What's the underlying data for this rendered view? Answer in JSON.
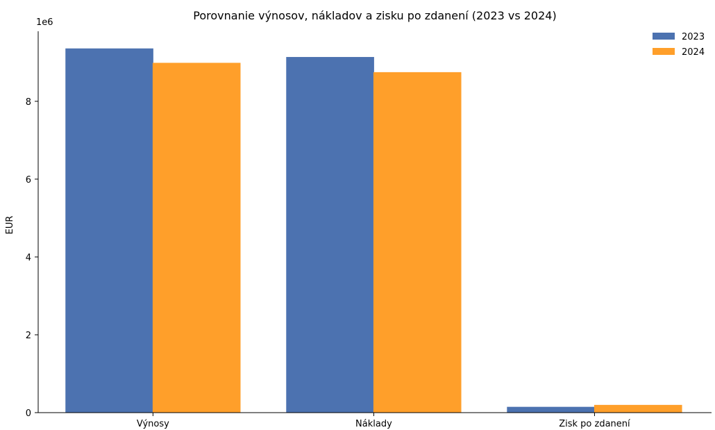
{
  "chart_data": {
    "type": "bar",
    "title": "Porovnanie výnosov, nákladov a zisku po zdanení (2023 vs 2024)",
    "xlabel": "",
    "ylabel": "EUR",
    "y_offset_label": "1e6",
    "ylim": [
      0,
      9.8
    ],
    "yticks": [
      0,
      2,
      4,
      6,
      8
    ],
    "ytick_labels": [
      "0",
      "2",
      "4",
      "6",
      "8"
    ],
    "categories": [
      "Výnosy",
      "Náklady",
      "Zisk po zdanení"
    ],
    "series": [
      {
        "name": "2023",
        "color": "#4c72b0",
        "values": [
          9.35,
          9.13,
          0.14
        ]
      },
      {
        "name": "2024",
        "color": "#ff9f2a",
        "values": [
          8.98,
          8.74,
          0.19
        ]
      }
    ],
    "grid": false,
    "legend_position": "top-right"
  }
}
